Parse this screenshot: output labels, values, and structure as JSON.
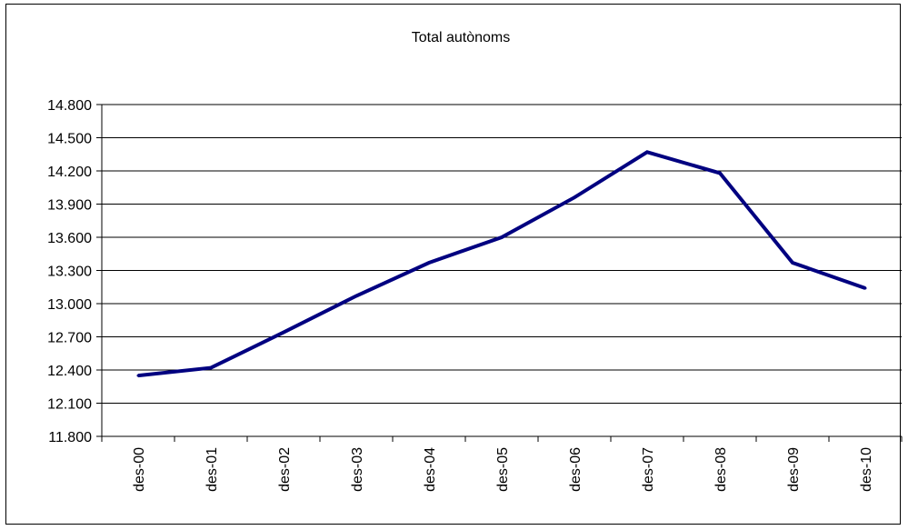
{
  "chart_data": {
    "type": "line",
    "title": "Total autònoms",
    "xlabel": "",
    "ylabel": "",
    "categories": [
      "des-00",
      "des-01",
      "des-02",
      "des-03",
      "des-04",
      "des-05",
      "des-06",
      "des-07",
      "des-08",
      "des-09",
      "des-10"
    ],
    "series": [
      {
        "color": "#000080",
        "values": [
          12350,
          12420,
          12740,
          13070,
          13370,
          13600,
          13960,
          14370,
          14180,
          13370,
          13140
        ]
      }
    ],
    "ylim": [
      11800,
      14800
    ],
    "yticks": [
      11800,
      12100,
      12400,
      12700,
      13000,
      13300,
      13600,
      13900,
      14200,
      14500,
      14800
    ],
    "ytick_labels": [
      "11.800",
      "12.100",
      "12.400",
      "12.700",
      "13.000",
      "13.300",
      "13.600",
      "13.900",
      "14.200",
      "14.500",
      "14.800"
    ],
    "grid": true,
    "legend": "none"
  }
}
